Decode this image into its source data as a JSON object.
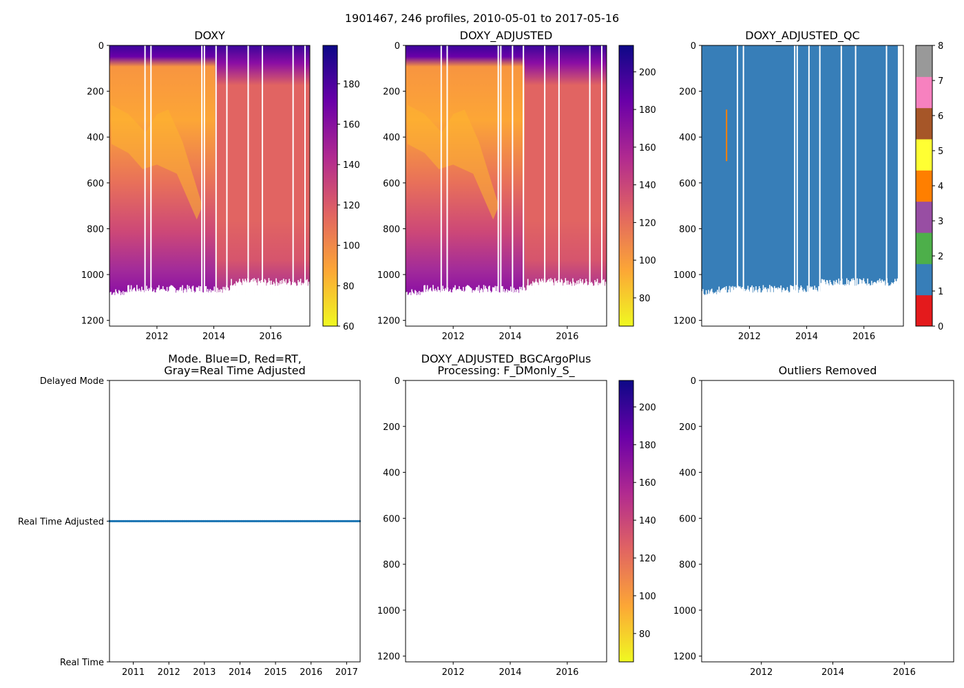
{
  "figure": {
    "suptitle": "1901467, 246 profiles, 2010-05-01 to 2017-05-16"
  },
  "chart_data": [
    {
      "id": "doxy",
      "type": "heatmap",
      "title": "DOXY",
      "x_range": [
        2010.33,
        2017.38
      ],
      "y_range": [
        1225,
        0
      ],
      "x_ticks": [
        2012,
        2014,
        2016
      ],
      "x_tick_labels": [
        "2012",
        "2014",
        "2016"
      ],
      "y_ticks": [
        0,
        200,
        400,
        600,
        800,
        1000,
        1200
      ],
      "y_tick_labels": [
        "0",
        "200",
        "400",
        "600",
        "800",
        "1000",
        "1200"
      ],
      "colormap": "plasma_r",
      "color_range": [
        60,
        199
      ],
      "colorbar_ticks": [
        60,
        80,
        100,
        120,
        140,
        160,
        180
      ],
      "colorbar_tick_labels": [
        "60",
        "80",
        "100",
        "120",
        "140",
        "160",
        "180"
      ],
      "max_profile_depth_m": 1090,
      "gap_years": [
        2011.58,
        2011.79,
        2013.58,
        2013.67,
        2014.08,
        2014.46,
        2015.21,
        2015.71,
        2016.79,
        2017.21
      ]
    },
    {
      "id": "doxy_adjusted",
      "type": "heatmap",
      "title": "DOXY_ADJUSTED",
      "x_range": [
        2010.33,
        2017.38
      ],
      "y_range": [
        1225,
        0
      ],
      "x_ticks": [
        2012,
        2014,
        2016
      ],
      "x_tick_labels": [
        "2012",
        "2014",
        "2016"
      ],
      "y_ticks": [
        0,
        200,
        400,
        600,
        800,
        1000,
        1200
      ],
      "y_tick_labels": [
        "0",
        "200",
        "400",
        "600",
        "800",
        "1000",
        "1200"
      ],
      "colormap": "plasma_r",
      "color_range": [
        65,
        214
      ],
      "colorbar_ticks": [
        80,
        100,
        120,
        140,
        160,
        180,
        200
      ],
      "colorbar_tick_labels": [
        "80",
        "100",
        "120",
        "140",
        "160",
        "180",
        "200"
      ],
      "max_profile_depth_m": 1090,
      "gap_years": [
        2011.58,
        2011.79,
        2013.58,
        2013.67,
        2014.08,
        2014.46,
        2015.21,
        2015.71,
        2016.79,
        2017.21
      ]
    },
    {
      "id": "doxy_adjusted_qc",
      "type": "heatmap",
      "title": "DOXY_ADJUSTED_QC",
      "x_range": [
        2010.33,
        2017.38
      ],
      "y_range": [
        1225,
        0
      ],
      "x_ticks": [
        2012,
        2014,
        2016
      ],
      "x_tick_labels": [
        "2012",
        "2014",
        "2016"
      ],
      "y_ticks": [
        0,
        200,
        400,
        600,
        800,
        1000,
        1200
      ],
      "y_tick_labels": [
        "0",
        "200",
        "400",
        "600",
        "800",
        "1000",
        "1200"
      ],
      "dominant_qc_flag": 1,
      "flag_4_streak": {
        "year": 2011.2,
        "depth_range": [
          280,
          505
        ]
      },
      "qc_colorbar": {
        "range": [
          0,
          8
        ],
        "band_colors": [
          "#e41a1c",
          "#377eb8",
          "#4daf4a",
          "#984ea3",
          "#ff7f00",
          "#ffff33",
          "#a65628",
          "#f781bf",
          "#999999"
        ],
        "ticks": [
          0,
          1,
          2,
          3,
          4,
          5,
          6,
          7,
          8
        ],
        "tick_labels": [
          "0",
          "1",
          "2",
          "3",
          "4",
          "5",
          "6",
          "7",
          "8"
        ]
      },
      "gap_years": [
        2011.58,
        2011.79,
        2013.58,
        2013.67,
        2014.08,
        2014.46,
        2015.21,
        2015.71,
        2016.79,
        2017.21
      ]
    },
    {
      "id": "mode",
      "type": "scatter",
      "title": "Mode. Blue=D, Red=RT,\nGray=Real Time Adjusted",
      "x_range": [
        2010.33,
        2017.38
      ],
      "x_ticks": [
        2011,
        2012,
        2013,
        2014,
        2015,
        2016,
        2017
      ],
      "x_tick_labels": [
        "2011",
        "2012",
        "2013",
        "2014",
        "2015",
        "2016",
        "2017"
      ],
      "y_categories": [
        "Real Time",
        "Real Time Adjusted",
        "Delayed Mode"
      ],
      "series": [
        {
          "name": "profiles",
          "color": "#1f77b4",
          "mode_value": "Real Time Adjusted",
          "x_start": 2010.33,
          "x_end": 2017.37,
          "count": 246
        }
      ]
    },
    {
      "id": "bgcargoplus",
      "type": "heatmap",
      "title": "DOXY_ADJUSTED_BGCArgoPlus\nProcessing: F_DMonly_S_",
      "x_range": [
        2010.33,
        2017.38
      ],
      "y_range": [
        1225,
        0
      ],
      "x_ticks": [
        2012,
        2014,
        2016
      ],
      "x_tick_labels": [
        "2012",
        "2014",
        "2016"
      ],
      "y_ticks": [
        0,
        200,
        400,
        600,
        800,
        1000,
        1200
      ],
      "y_tick_labels": [
        "0",
        "200",
        "400",
        "600",
        "800",
        "1000",
        "1200"
      ],
      "colormap": "plasma_r",
      "color_range": [
        65,
        214
      ],
      "colorbar_ticks": [
        80,
        100,
        120,
        140,
        160,
        180,
        200
      ],
      "colorbar_tick_labels": [
        "80",
        "100",
        "120",
        "140",
        "160",
        "180",
        "200"
      ],
      "values": []
    },
    {
      "id": "outliers",
      "type": "scatter",
      "title": "Outliers Removed",
      "x_range": [
        2010.33,
        2017.38
      ],
      "y_range": [
        1225,
        0
      ],
      "x_ticks": [
        2012,
        2014,
        2016
      ],
      "x_tick_labels": [
        "2012",
        "2014",
        "2016"
      ],
      "y_ticks": [
        0,
        200,
        400,
        600,
        800,
        1000,
        1200
      ],
      "y_tick_labels": [
        "0",
        "200",
        "400",
        "600",
        "800",
        "1000",
        "1200"
      ],
      "values": []
    }
  ]
}
